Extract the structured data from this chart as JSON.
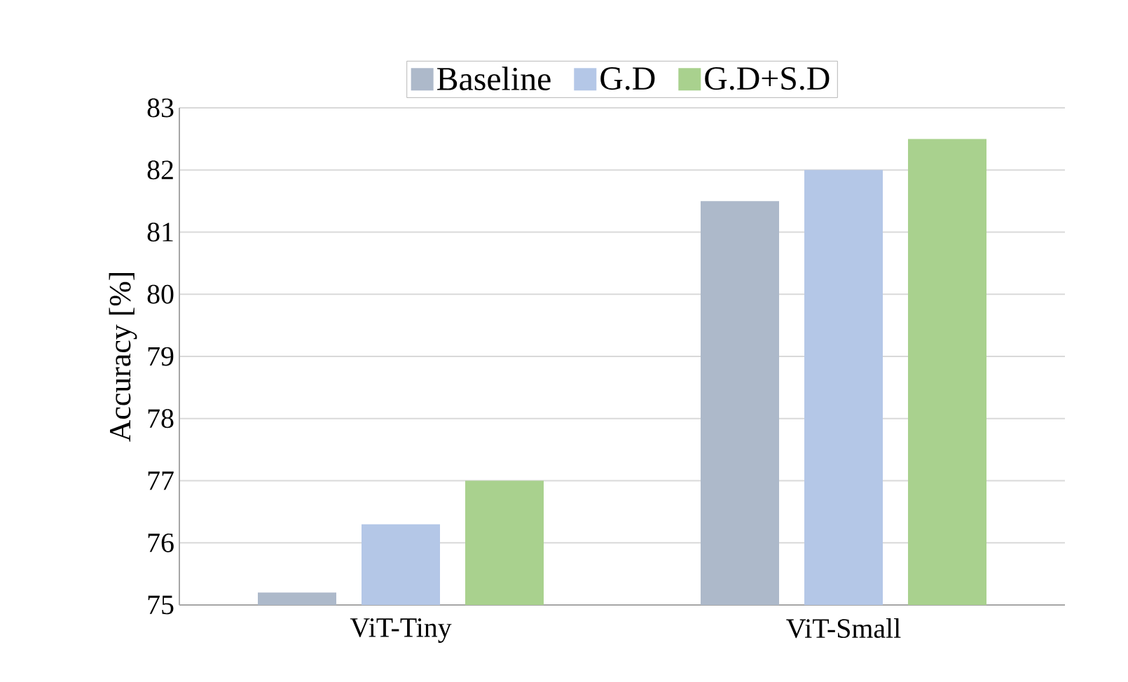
{
  "chart_data": {
    "type": "bar",
    "ylabel": "Accuracy [%]",
    "categories": [
      "ViT-Tiny",
      "ViT-Small"
    ],
    "series": [
      {
        "name": "Baseline",
        "color": "#adb9ca",
        "values": [
          75.2,
          81.5
        ]
      },
      {
        "name": "G.D",
        "color": "#b4c7e7",
        "values": [
          76.3,
          82.0
        ]
      },
      {
        "name": "G.D+S.D",
        "color": "#a9d18e",
        "values": [
          77.0,
          82.5
        ]
      }
    ],
    "ylim": [
      75,
      83
    ],
    "yticks": [
      75,
      76,
      77,
      78,
      79,
      80,
      81,
      82,
      83
    ],
    "grid": "y",
    "legend": "top"
  }
}
